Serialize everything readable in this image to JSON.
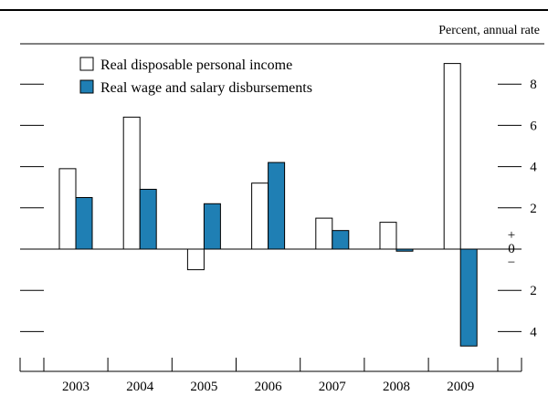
{
  "chart_data": {
    "type": "bar",
    "unit_label": "Percent, annual rate",
    "categories": [
      "2003",
      "2004",
      "2005",
      "2006",
      "2007",
      "2008",
      "2009"
    ],
    "series": [
      {
        "name": "Real disposable personal income",
        "color": "#ffffff",
        "values": [
          3.9,
          6.4,
          -1.0,
          3.2,
          1.5,
          1.3,
          9.0
        ]
      },
      {
        "name": "Real wage and salary disbursements",
        "color": "#1f7fb4",
        "values": [
          2.5,
          2.9,
          2.2,
          4.2,
          0.9,
          -0.1,
          -4.7
        ]
      }
    ],
    "ylim": [
      -5,
      10
    ],
    "yticks": [
      {
        "value": 8,
        "label": "8"
      },
      {
        "value": 6,
        "label": "6"
      },
      {
        "value": 4,
        "label": "4"
      },
      {
        "value": 2,
        "label": "2"
      },
      {
        "value": -2,
        "label": "2"
      },
      {
        "value": -4,
        "label": "4"
      }
    ],
    "zero_label": {
      "plus": "+",
      "zero": "0",
      "minus": "−"
    },
    "legend_position": "top-left",
    "grid": false
  }
}
